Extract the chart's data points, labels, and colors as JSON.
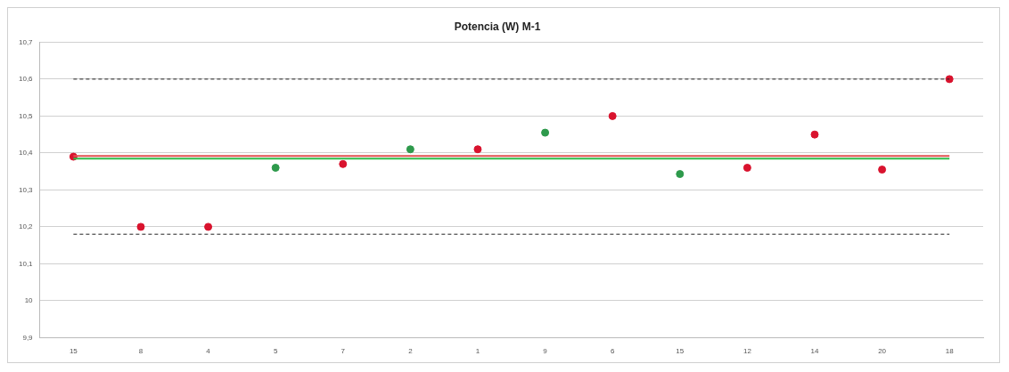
{
  "chart_data": {
    "type": "scatter",
    "title": "Potencia (W) M-1",
    "categories": [
      "15",
      "8",
      "4",
      "5",
      "7",
      "2",
      "1",
      "9",
      "6",
      "15",
      "12",
      "14",
      "20",
      "18"
    ],
    "values": [
      10.39,
      10.2,
      10.2,
      10.36,
      10.37,
      10.41,
      10.41,
      10.455,
      10.5,
      10.343,
      10.36,
      10.45,
      10.355,
      10.6
    ],
    "colors": [
      "#d9132e",
      "#d9132e",
      "#d9132e",
      "#2e9a4c",
      "#d9132e",
      "#2e9a4c",
      "#d9132e",
      "#2e9a4c",
      "#d9132e",
      "#2e9a4c",
      "#d9132e",
      "#d9132e",
      "#d9132e",
      "#d9132e"
    ],
    "marker": "circle",
    "ylim": [
      9.9,
      10.7
    ],
    "yticks": [
      {
        "value": 9.9,
        "label": "9,9"
      },
      {
        "value": 10,
        "label": "10"
      },
      {
        "value": 10.1,
        "label": "10,1"
      },
      {
        "value": 10.2,
        "label": "10,2"
      },
      {
        "value": 10.3,
        "label": "10,3"
      },
      {
        "value": 10.4,
        "label": "10,4"
      },
      {
        "value": 10.5,
        "label": "10,5"
      },
      {
        "value": 10.6,
        "label": "10,6"
      },
      {
        "value": 10.7,
        "label": "10,7"
      }
    ],
    "grid": "y",
    "legend": false,
    "ref_lines": [
      {
        "axis": "y",
        "value": 10.6,
        "color": "#222222",
        "line_style": "dashed"
      },
      {
        "axis": "y",
        "value": 10.18,
        "color": "#222222",
        "line_style": "dashed"
      },
      {
        "axis": "y",
        "value": 10.392,
        "color": "#e05050",
        "line_style": "solid"
      },
      {
        "axis": "y",
        "value": 10.385,
        "color": "#2ebd4a",
        "line_style": "solid"
      }
    ]
  }
}
